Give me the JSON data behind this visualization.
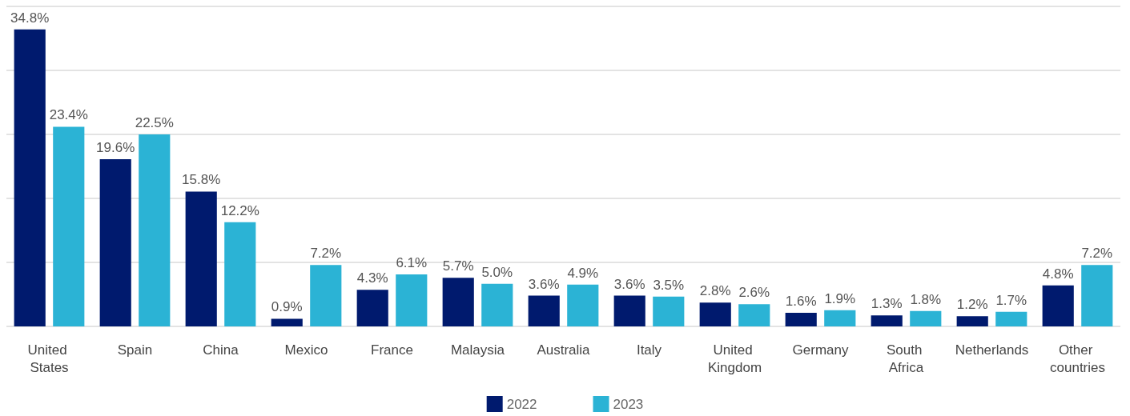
{
  "chart_data": {
    "type": "bar",
    "categories": [
      "United States",
      "Spain",
      "China",
      "Mexico",
      "France",
      "Malaysia",
      "Australia",
      "Italy",
      "United Kingdom",
      "Germany",
      "South Africa",
      "Netherlands",
      "Other countries"
    ],
    "series": [
      {
        "name": "2022",
        "color": "#001a6e",
        "values": [
          34.8,
          19.6,
          15.8,
          0.9,
          4.3,
          5.7,
          3.6,
          3.6,
          2.8,
          1.6,
          1.3,
          1.2,
          4.8
        ],
        "value_labels": [
          "34.8%",
          "19.6%",
          "15.8%",
          "0.9%",
          "4.3%",
          "5.7%",
          "3.6%",
          "3.6%",
          "2.8%",
          "1.6%",
          "1.3%",
          "1.2%",
          "4.8%"
        ]
      },
      {
        "name": "2023",
        "color": "#2bb3d5",
        "values": [
          23.4,
          22.5,
          12.2,
          7.2,
          6.1,
          5.0,
          4.9,
          3.5,
          2.6,
          1.9,
          1.8,
          1.7,
          7.2
        ],
        "value_labels": [
          "23.4%",
          "22.5%",
          "12.2%",
          "7.2%",
          "6.1%",
          "5.0%",
          "4.9%",
          "3.5%",
          "2.6%",
          "1.9%",
          "1.8%",
          "1.7%",
          "7.2%"
        ]
      }
    ],
    "ylim": [
      0,
      37.5
    ],
    "yticks": [
      {
        "value": 0,
        "label": null
      },
      {
        "value": 7.5,
        "label": null
      },
      {
        "value": 15,
        "label": null
      },
      {
        "value": 22.5,
        "label": null
      },
      {
        "value": 30,
        "label": null
      },
      {
        "value": 37.5,
        "label": null
      }
    ],
    "tick_labels": "x",
    "grid": "y",
    "legend": "bottom"
  }
}
